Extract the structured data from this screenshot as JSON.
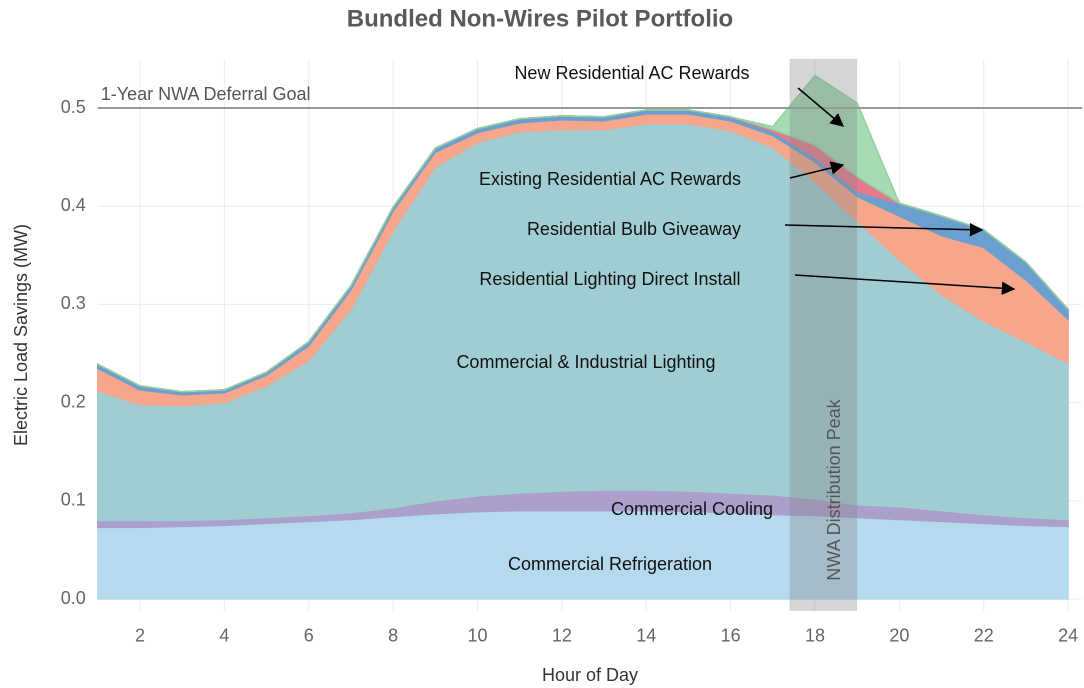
{
  "chart_data": {
    "type": "stacked_area",
    "title": "Bundled Non-Wires Pilot Portfolio",
    "x_label": "Hour of Day",
    "y_label": "Electric Load Savings (MW)",
    "x": [
      1,
      2,
      3,
      4,
      5,
      6,
      7,
      8,
      9,
      10,
      11,
      12,
      13,
      14,
      15,
      16,
      17,
      18,
      19,
      20,
      21,
      22,
      23,
      24
    ],
    "series": [
      {
        "name": "Commercial Refrigeration",
        "color": "#b5daee",
        "values": [
          0.073,
          0.073,
          0.074,
          0.075,
          0.077,
          0.079,
          0.081,
          0.084,
          0.087,
          0.089,
          0.09,
          0.09,
          0.09,
          0.09,
          0.089,
          0.088,
          0.086,
          0.085,
          0.083,
          0.081,
          0.079,
          0.077,
          0.075,
          0.074
        ]
      },
      {
        "name": "Commercial Cooling",
        "color": "#ab9fcc",
        "values": [
          0.007,
          0.007,
          0.006,
          0.006,
          0.006,
          0.006,
          0.007,
          0.009,
          0.013,
          0.016,
          0.018,
          0.02,
          0.021,
          0.021,
          0.021,
          0.02,
          0.02,
          0.017,
          0.013,
          0.013,
          0.011,
          0.009,
          0.008,
          0.007
        ]
      },
      {
        "name": "Commercial & Industrial Lighting",
        "color": "#9fcdd1",
        "values": [
          0.132,
          0.118,
          0.117,
          0.119,
          0.134,
          0.158,
          0.207,
          0.282,
          0.34,
          0.36,
          0.368,
          0.368,
          0.367,
          0.373,
          0.374,
          0.369,
          0.354,
          0.323,
          0.289,
          0.251,
          0.22,
          0.197,
          0.179,
          0.159
        ]
      },
      {
        "name": "Residential Lighting Direct Install",
        "color": "#f5a68b",
        "values": [
          0.023,
          0.015,
          0.011,
          0.01,
          0.011,
          0.015,
          0.02,
          0.02,
          0.015,
          0.01,
          0.009,
          0.01,
          0.009,
          0.01,
          0.01,
          0.01,
          0.012,
          0.02,
          0.025,
          0.045,
          0.06,
          0.075,
          0.063,
          0.045
        ]
      },
      {
        "name": "Residential Bulb Giveaway",
        "color": "#6a9fcf",
        "values": [
          0.004,
          0.004,
          0.003,
          0.003,
          0.003,
          0.004,
          0.004,
          0.004,
          0.004,
          0.004,
          0.004,
          0.004,
          0.004,
          0.004,
          0.004,
          0.004,
          0.004,
          0.005,
          0.005,
          0.013,
          0.02,
          0.018,
          0.018,
          0.01
        ]
      },
      {
        "name": "Existing Residential AC Rewards",
        "color": "#e8788c",
        "values": [
          0,
          0,
          0,
          0,
          0,
          0,
          0,
          0,
          0,
          0,
          0,
          0,
          0,
          0,
          0,
          0,
          0.002,
          0.012,
          0.015,
          0,
          0,
          0,
          0,
          0
        ]
      },
      {
        "name": "New Residential AC Rewards",
        "color": "#8fd3a0",
        "values": [
          0,
          0,
          0,
          0,
          0,
          0,
          0,
          0,
          0,
          0,
          0,
          0,
          0,
          0,
          0,
          0,
          0.003,
          0.071,
          0.075,
          0,
          0,
          0,
          0,
          0
        ]
      }
    ],
    "xlim": [
      1,
      24.33
    ],
    "ylim": [
      -0.012,
      0.55
    ],
    "xticks": [
      2,
      4,
      6,
      8,
      10,
      12,
      14,
      16,
      18,
      20,
      22,
      24
    ],
    "yticks": [
      {
        "value": 0,
        "label": "0.0"
      },
      0.1,
      0.2,
      0.3,
      0.4,
      0.5
    ],
    "grid": true,
    "goal": {
      "value": 0.5,
      "label": "1-Year NWA Deferral Goal"
    },
    "peak": {
      "range": [
        17.4,
        19
      ],
      "label": "NWA Distribution Peak"
    }
  }
}
